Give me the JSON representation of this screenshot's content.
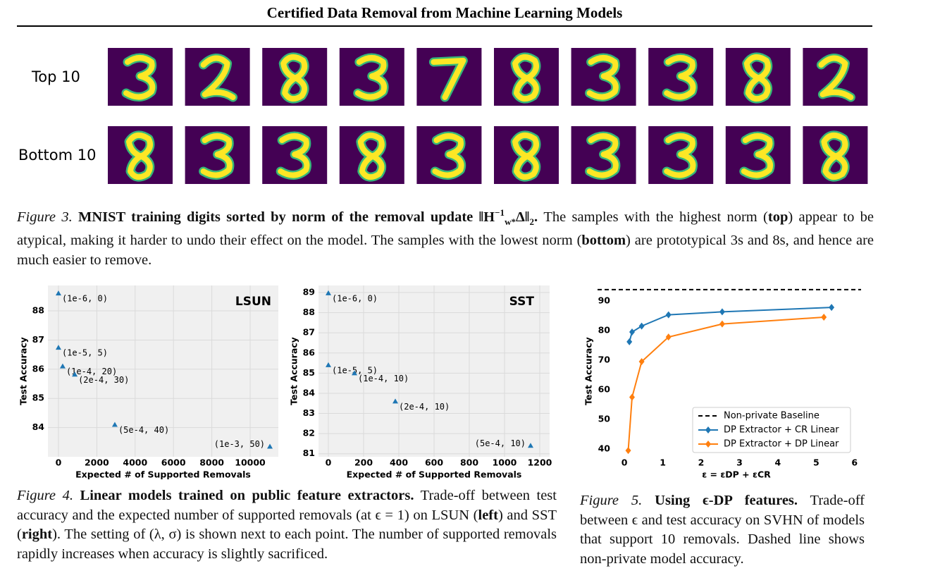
{
  "header": {
    "title": "Certified Data Removal from Machine Learning Models"
  },
  "figure3": {
    "row_labels": [
      "Top 10",
      "Bottom 10"
    ],
    "caption": [
      {
        "text": "Figure 3.",
        "style": "italic"
      },
      {
        "text": " MNIST training digits sorted by norm of the removal update ‖H",
        "style": "bold"
      },
      {
        "text": "−1",
        "style": "bold-sup"
      },
      {
        "text": "w*",
        "style": "bold-sub"
      },
      {
        "text": "Δ‖",
        "style": "bold"
      },
      {
        "text": "2",
        "style": "bold-sub"
      },
      {
        "text": ".",
        "style": "bold"
      },
      {
        "text": " The samples with the highest norm (",
        "style": "normal"
      },
      {
        "text": "top",
        "style": "bold"
      },
      {
        "text": ") appear to be atypical, making it harder to undo their effect on the model. The samples with the lowest norm (",
        "style": "normal"
      },
      {
        "text": "bottom",
        "style": "bold"
      },
      {
        "text": ") are prototypical 3s and 8s, and hence are much easier to remove.",
        "style": "normal"
      }
    ]
  },
  "figure4": {
    "caption": [
      {
        "text": "Figure 4.",
        "style": "italic"
      },
      {
        "text": " Linear models trained on public feature extractors.",
        "style": "bold"
      },
      {
        "text": " Trade-off between test accuracy and the expected number of supported removals (at ϵ = 1) on LSUN (",
        "style": "normal"
      },
      {
        "text": "left",
        "style": "bold"
      },
      {
        "text": ") and SST (",
        "style": "normal"
      },
      {
        "text": "right",
        "style": "bold"
      },
      {
        "text": "). The setting of (λ, σ) is shown next to each point. The number of supported removals rapidly increases when accuracy is slightly sacrificed.",
        "style": "normal"
      }
    ]
  },
  "figure5": {
    "caption": [
      {
        "text": "Figure 5.",
        "style": "italic"
      },
      {
        "text": " Using ϵ-DP features.",
        "style": "bold"
      },
      {
        "text": " Trade-off between ϵ and test accuracy on SVHN of models that support 10 removals. Dashed line shows non-private model accuracy.",
        "style": "normal"
      }
    ]
  },
  "chart_data": [
    {
      "type": "scatter",
      "title": "LSUN",
      "xlabel": "Expected # of Supported Removals",
      "ylabel": "Test Accuracy",
      "color": "#1f77b4",
      "x": [
        0,
        0,
        220,
        850,
        2940,
        11030
      ],
      "values": [
        88.6,
        86.74,
        86.1,
        85.82,
        84.1,
        83.35
      ],
      "point_labels": [
        "(1e-6, 0)",
        "(1e-5, 5)",
        "(1e-4, 20)",
        "(2e-4, 30)",
        "(5e-4, 40)",
        "(1e-3, 50)"
      ],
      "xlim": [
        -550,
        11470
      ],
      "ylim": [
        83.0,
        88.87
      ],
      "xticks": [
        0,
        2000,
        4000,
        6000,
        8000,
        10000
      ],
      "yticks": [
        84,
        85,
        86,
        87,
        88
      ],
      "grid": true
    },
    {
      "type": "scatter",
      "title": "SST",
      "xlabel": "Expected # of Supported Removals",
      "ylabel": "Test Accuracy",
      "color": "#1f77b4",
      "x": [
        0,
        0,
        148,
        380,
        1148
      ],
      "values": [
        88.97,
        85.4,
        85.0,
        83.6,
        81.4
      ],
      "point_labels": [
        "(1e-6, 0)",
        "(1e-5, 5)",
        "(1e-4, 10)",
        "(2e-4, 10)",
        "(5e-4, 10)"
      ],
      "xlim": [
        -56,
        1256
      ],
      "ylim": [
        80.85,
        89.35
      ],
      "xticks": [
        0,
        200,
        400,
        600,
        800,
        1000,
        1200
      ],
      "yticks": [
        81,
        82,
        83,
        84,
        85,
        86,
        87,
        88,
        89
      ],
      "grid": true
    },
    {
      "type": "line",
      "xlabel": "ε = εDP + εCR",
      "ylabel": "Test Accuracy",
      "legend": "lower right",
      "grid": false,
      "reference_lines": [
        {
          "name": "Non-private Baseline",
          "y": 93.8,
          "color": "#000000",
          "dashed": true
        }
      ],
      "series": [
        {
          "name": "DP Extractor + CR Linear",
          "color": "#1f77b4",
          "x": [
            0.13,
            0.2,
            0.45,
            1.15,
            2.55,
            5.4
          ],
          "values": [
            76.2,
            79.5,
            81.5,
            85.3,
            86.3,
            87.8
          ]
        },
        {
          "name": "DP Extractor + DP Linear",
          "color": "#ff7f0e",
          "x": [
            0.1,
            0.2,
            0.45,
            1.15,
            2.55,
            5.2
          ],
          "values": [
            39.5,
            57.5,
            69.5,
            77.8,
            82.2,
            84.5
          ]
        }
      ],
      "xlim": [
        -0.7,
        6.17
      ],
      "ylim": [
        37.4,
        95.2
      ],
      "xticks": [
        0,
        1,
        2,
        3,
        4,
        5,
        6
      ],
      "yticks": [
        40,
        50,
        60,
        70,
        80,
        90
      ]
    }
  ]
}
